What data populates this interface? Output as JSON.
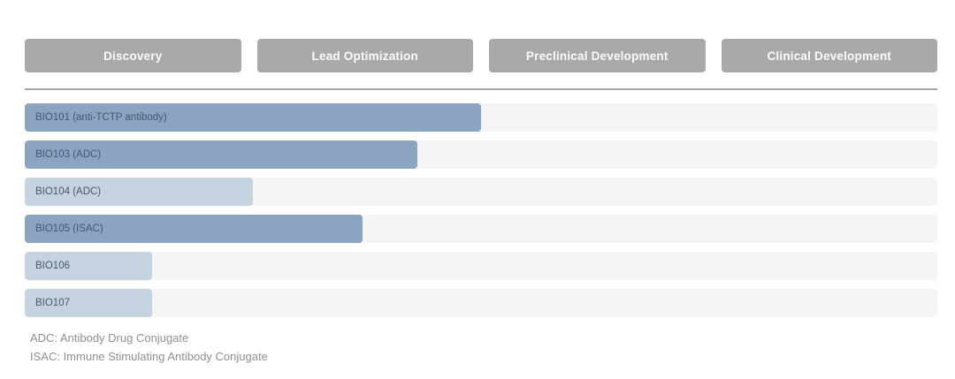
{
  "stages": [
    {
      "label": "Discovery"
    },
    {
      "label": "Lead Optimization"
    },
    {
      "label": "Preclinical Development"
    },
    {
      "label": "Clinical Development"
    }
  ],
  "pipeline": {
    "rows": [
      {
        "label": "BIO101 (anti-TCTP antibody)",
        "progress_percent": 50,
        "shade": "dark"
      },
      {
        "label": "BIO103 (ADC)",
        "progress_percent": 43,
        "shade": "dark"
      },
      {
        "label": "BIO104 (ADC)",
        "progress_percent": 25,
        "shade": "light"
      },
      {
        "label": "BIO105 (ISAC)",
        "progress_percent": 37,
        "shade": "dark"
      },
      {
        "label": "BIO106",
        "progress_percent": 14,
        "shade": "light"
      },
      {
        "label": "BIO107",
        "progress_percent": 14,
        "shade": "light"
      }
    ]
  },
  "footnotes": [
    "ADC: Antibody Drug Conjugate",
    "ISAC: Immune Stimulating Antibody Conjugate"
  ],
  "colors": {
    "bar_dark": "#8ba4c2",
    "bar_light": "#c5d2df",
    "track": "#f5f5f6",
    "stage_button": "#a9a9a9",
    "stage_button_text": "#fbfbfb",
    "bar_label_text": "#47586d",
    "footnote_text": "#909090",
    "separator": "#a6a6a6"
  },
  "chart_data": {
    "type": "bar",
    "orientation": "horizontal",
    "title": "",
    "stage_columns": [
      "Discovery",
      "Lead Optimization",
      "Preclinical Development",
      "Clinical Development"
    ],
    "categories": [
      "BIO101 (anti-TCTP antibody)",
      "BIO103 (ADC)",
      "BIO104 (ADC)",
      "BIO105 (ISAC)",
      "BIO106",
      "BIO107"
    ],
    "values_percent_of_pipeline": [
      50,
      43,
      25,
      37,
      14,
      14
    ],
    "values_in_stage_units": [
      2.0,
      1.72,
      1.0,
      1.48,
      0.56,
      0.56
    ],
    "xlim_stage_units": [
      0,
      4
    ],
    "grid": false,
    "legend": false,
    "annotations": [
      "ADC: Antibody Drug Conjugate",
      "ISAC: Immune Stimulating Antibody Conjugate"
    ]
  }
}
